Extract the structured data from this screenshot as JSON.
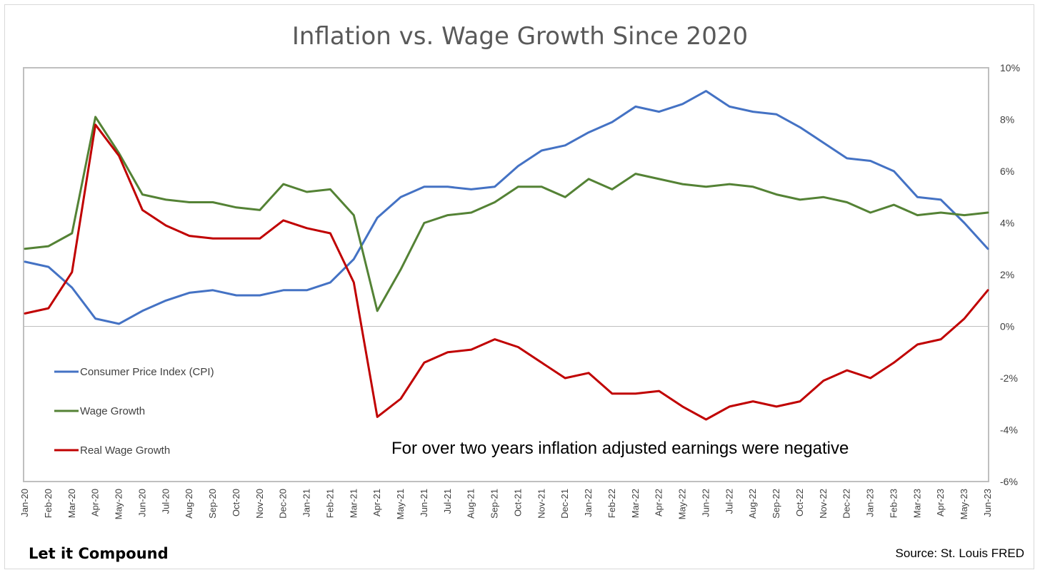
{
  "chart_data": {
    "type": "line",
    "title": "Inflation vs. Wage Growth Since 2020",
    "annotation": "For over two years inflation adjusted earnings were negative",
    "brand": "Let it Compound",
    "source": "Source: St. Louis FRED",
    "ylim": [
      -6,
      10
    ],
    "yticks": [
      "10%",
      "8%",
      "6%",
      "4%",
      "2%",
      "0%",
      "-2%",
      "-4%",
      "-6%"
    ],
    "ytick_values": [
      10,
      8,
      6,
      4,
      2,
      0,
      -2,
      -4,
      -6
    ],
    "y_axis_side": "right",
    "grid": false,
    "legend_position": "bottom-left",
    "categories": [
      "Jan-20",
      "Feb-20",
      "Mar-20",
      "Apr-20",
      "May-20",
      "Jun-20",
      "Jul-20",
      "Aug-20",
      "Sep-20",
      "Oct-20",
      "Nov-20",
      "Dec-20",
      "Jan-21",
      "Feb-21",
      "Mar-21",
      "Apr-21",
      "May-21",
      "Jun-21",
      "Jul-21",
      "Aug-21",
      "Sep-21",
      "Oct-21",
      "Nov-21",
      "Dec-21",
      "Jan-22",
      "Feb-22",
      "Mar-22",
      "Apr-22",
      "May-22",
      "Jun-22",
      "Jul-22",
      "Aug-22",
      "Sep-22",
      "Oct-22",
      "Nov-22",
      "Dec-22",
      "Jan-23",
      "Feb-23",
      "Mar-23",
      "Apr-23",
      "May-23",
      "Jun-23"
    ],
    "series": [
      {
        "name": "Consumer Price Index (CPI)",
        "color": "#4472C4",
        "values": [
          2.5,
          2.3,
          1.5,
          0.3,
          0.1,
          0.6,
          1.0,
          1.3,
          1.4,
          1.2,
          1.2,
          1.4,
          1.4,
          1.7,
          2.6,
          4.2,
          5.0,
          5.4,
          5.4,
          5.3,
          5.4,
          6.2,
          6.8,
          7.0,
          7.5,
          7.9,
          8.5,
          8.3,
          8.6,
          9.1,
          8.5,
          8.3,
          8.2,
          7.7,
          7.1,
          6.5,
          6.4,
          6.0,
          5.0,
          4.9,
          4.0,
          3.0
        ]
      },
      {
        "name": "Wage Growth",
        "color": "#548235",
        "values": [
          3.0,
          3.1,
          3.6,
          8.1,
          6.7,
          5.1,
          4.9,
          4.8,
          4.8,
          4.6,
          4.5,
          5.5,
          5.2,
          5.3,
          4.3,
          0.6,
          2.2,
          4.0,
          4.3,
          4.4,
          4.8,
          5.4,
          5.4,
          5.0,
          5.7,
          5.3,
          5.9,
          5.7,
          5.5,
          5.4,
          5.5,
          5.4,
          5.1,
          4.9,
          5.0,
          4.8,
          4.4,
          4.7,
          4.3,
          4.4,
          4.3,
          4.4
        ]
      },
      {
        "name": "Real Wage Growth",
        "color": "#C00000",
        "values": [
          0.5,
          0.7,
          2.1,
          7.8,
          6.6,
          4.5,
          3.9,
          3.5,
          3.4,
          3.4,
          3.4,
          4.1,
          3.8,
          3.6,
          1.7,
          -3.5,
          -2.8,
          -1.4,
          -1.0,
          -0.9,
          -0.5,
          -0.8,
          -1.4,
          -2.0,
          -1.8,
          -2.6,
          -2.6,
          -2.5,
          -3.1,
          -3.6,
          -3.1,
          -2.9,
          -3.1,
          -2.9,
          -2.1,
          -1.7,
          -2.0,
          -1.4,
          -0.7,
          -0.5,
          0.3,
          1.4
        ]
      }
    ]
  }
}
